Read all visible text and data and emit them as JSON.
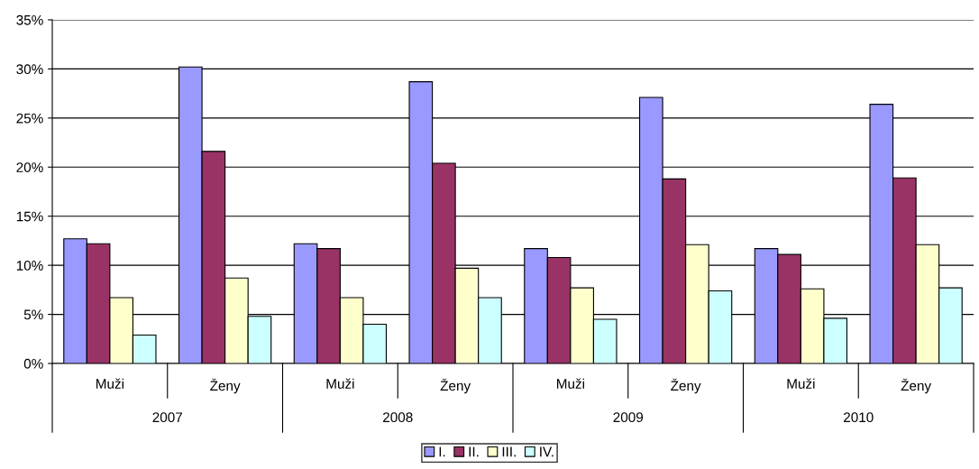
{
  "chart_data": {
    "type": "bar",
    "categories": [
      "Muži",
      "Ženy",
      "Muži",
      "Ženy",
      "Muži",
      "Ženy",
      "Muži",
      "Ženy"
    ],
    "annotations": [
      "2007",
      "2008",
      "2009",
      "2010"
    ],
    "series": [
      {
        "name": "I.",
        "color": "#9999ff",
        "values": [
          12.7,
          30.2,
          12.2,
          28.7,
          11.7,
          27.1,
          11.7,
          26.4
        ]
      },
      {
        "name": "II.",
        "color": "#993366",
        "values": [
          12.2,
          21.6,
          11.7,
          20.4,
          10.8,
          18.8,
          11.1,
          18.9
        ]
      },
      {
        "name": "III.",
        "color": "#ffffcc",
        "values": [
          6.7,
          8.7,
          6.7,
          9.7,
          7.7,
          12.1,
          7.6,
          12.1
        ]
      },
      {
        "name": "IV.",
        "color": "#ccffff",
        "values": [
          2.9,
          4.8,
          4.0,
          6.7,
          4.5,
          7.4,
          4.6,
          7.7
        ]
      }
    ],
    "ylim": [
      0,
      35
    ],
    "yticks": [
      {
        "value": 0,
        "label": "0%"
      },
      {
        "value": 5,
        "label": "5%"
      },
      {
        "value": 10,
        "label": "10%"
      },
      {
        "value": 15,
        "label": "15%"
      },
      {
        "value": 20,
        "label": "20%"
      },
      {
        "value": 25,
        "label": "25%"
      },
      {
        "value": 30,
        "label": "30%"
      },
      {
        "value": 35,
        "label": "35%"
      }
    ],
    "grid": "y",
    "legend": "bottom"
  }
}
